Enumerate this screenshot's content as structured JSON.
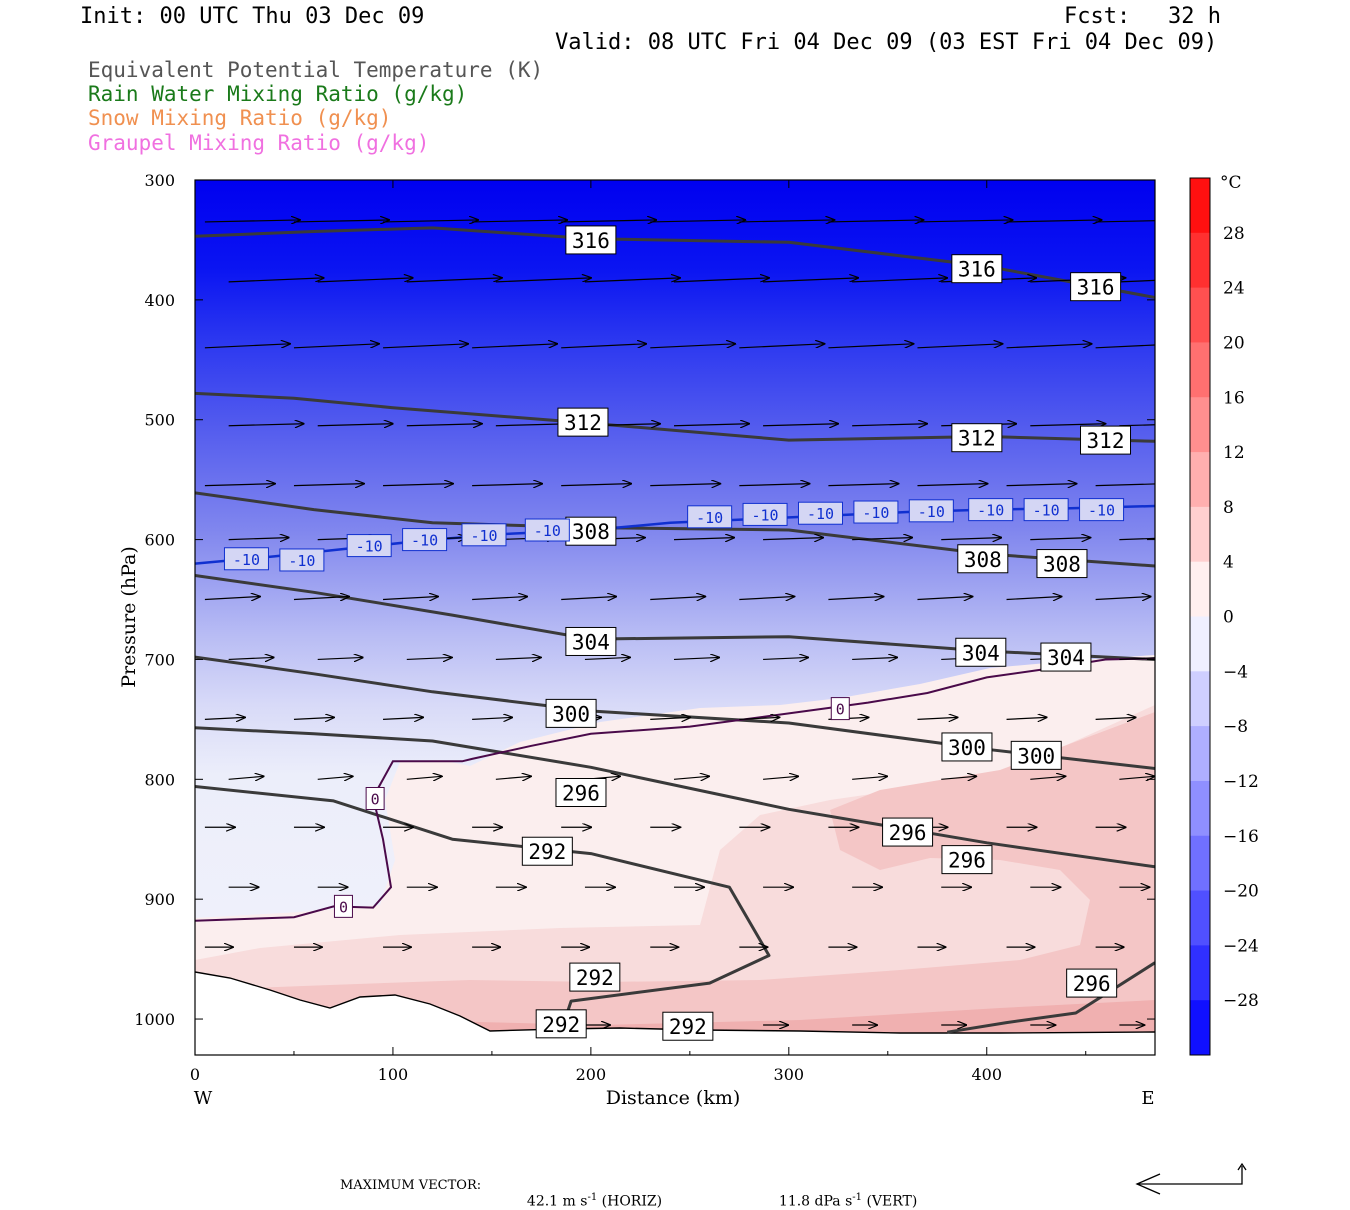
{
  "header": {
    "init": "Init: 00 UTC Thu 03 Dec 09",
    "fcst_label": "Fcst:",
    "fcst_value": "32 h",
    "valid": "Valid: 08 UTC Fri 04 Dec 09 (03 EST Fri 04 Dec 09)"
  },
  "legend": [
    {
      "label": "Equivalent Potential Temperature (K)",
      "color": "#555555"
    },
    {
      "label": "Rain Water Mixing Ratio (g/kg)",
      "color": "#1a7a1a"
    },
    {
      "label": "Snow Mixing Ratio (g/kg)",
      "color": "#f09050"
    },
    {
      "label": "Graupel Mixing Ratio (g/kg)",
      "color": "#f070e0"
    }
  ],
  "chart_data": {
    "type": "cross-section",
    "xlabel": "Distance (km)",
    "ylabel": "Pressure (hPa)",
    "xlim": [
      0,
      485
    ],
    "ylim": [
      1030,
      300
    ],
    "x_ticks": [
      0,
      100,
      200,
      300,
      400
    ],
    "y_ticks": [
      300,
      400,
      500,
      600,
      700,
      800,
      900,
      1000
    ],
    "x_end_labels": {
      "left": "W",
      "right": "E"
    },
    "colorbar": {
      "unit": "°C",
      "range": [
        -32,
        32
      ],
      "step": 4,
      "tick_labels": [
        28,
        24,
        20,
        16,
        12,
        8,
        4,
        0,
        -4,
        -8,
        -12,
        -16,
        -20,
        -24,
        -28
      ]
    },
    "theta_e_contours": [
      {
        "value": 316,
        "label_positions": [
          [
            200,
            350
          ],
          [
            395,
            374
          ],
          [
            455,
            389
          ]
        ],
        "line": [
          [
            0,
            347
          ],
          [
            60,
            343
          ],
          [
            120,
            340
          ],
          [
            200,
            349
          ],
          [
            300,
            352
          ],
          [
            400,
            372
          ],
          [
            485,
            398
          ]
        ]
      },
      {
        "value": 312,
        "label_positions": [
          [
            196,
            502
          ],
          [
            395,
            515
          ],
          [
            460,
            517
          ]
        ],
        "line": [
          [
            0,
            478
          ],
          [
            50,
            482
          ],
          [
            100,
            490
          ],
          [
            200,
            503
          ],
          [
            300,
            517
          ],
          [
            400,
            514
          ],
          [
            485,
            518
          ]
        ]
      },
      {
        "value": 308,
        "label_positions": [
          [
            200,
            593
          ],
          [
            398,
            616
          ],
          [
            438,
            620
          ]
        ],
        "line": [
          [
            0,
            561
          ],
          [
            60,
            575
          ],
          [
            120,
            586
          ],
          [
            200,
            590
          ],
          [
            300,
            592
          ],
          [
            400,
            612
          ],
          [
            485,
            622
          ]
        ]
      },
      {
        "value": 304,
        "label_positions": [
          [
            200,
            685
          ],
          [
            397,
            694
          ],
          [
            440,
            698
          ]
        ],
        "line": [
          [
            0,
            630
          ],
          [
            60,
            644
          ],
          [
            130,
            663
          ],
          [
            200,
            683
          ],
          [
            300,
            681
          ],
          [
            400,
            693
          ],
          [
            485,
            700
          ]
        ]
      },
      {
        "value": 300,
        "label_positions": [
          [
            190,
            745
          ],
          [
            390,
            773
          ],
          [
            425,
            780
          ]
        ],
        "line": [
          [
            0,
            698
          ],
          [
            60,
            712
          ],
          [
            120,
            727
          ],
          [
            200,
            743
          ],
          [
            300,
            753
          ],
          [
            400,
            775
          ],
          [
            485,
            791
          ]
        ]
      },
      {
        "value": 296,
        "label_positions": [
          [
            195,
            811
          ],
          [
            360,
            844
          ],
          [
            390,
            867
          ]
        ],
        "line": [
          [
            0,
            757
          ],
          [
            60,
            762
          ],
          [
            120,
            768
          ],
          [
            200,
            790
          ],
          [
            300,
            825
          ],
          [
            400,
            853
          ],
          [
            485,
            873
          ]
        ]
      },
      {
        "value": 292,
        "label_positions": [
          [
            178,
            860
          ],
          [
            202,
            965
          ],
          [
            185,
            1004
          ],
          [
            249,
            1006
          ]
        ],
        "line": [
          [
            0,
            806
          ],
          [
            70,
            818
          ],
          [
            130,
            850
          ],
          [
            200,
            862
          ],
          [
            270,
            890
          ],
          [
            290,
            947
          ],
          [
            260,
            970
          ],
          [
            190,
            985
          ],
          [
            185,
            1010
          ]
        ]
      },
      {
        "value": 296,
        "label_positions": [
          [
            453,
            970
          ]
        ],
        "line": [
          [
            380,
            1011
          ],
          [
            410,
            1003
          ],
          [
            445,
            995
          ],
          [
            485,
            953
          ]
        ]
      }
    ],
    "temperature_contours": [
      {
        "value": -10,
        "color": "#1030d0",
        "label_positions": [
          [
            26,
            616
          ],
          [
            54,
            617
          ],
          [
            88,
            605
          ],
          [
            116,
            600
          ],
          [
            146,
            596
          ],
          [
            178,
            592
          ],
          [
            260,
            581
          ],
          [
            288,
            579
          ],
          [
            316,
            578
          ],
          [
            344,
            577
          ],
          [
            372,
            576
          ],
          [
            402,
            575
          ],
          [
            430,
            575
          ],
          [
            458,
            575
          ]
        ]
      },
      {
        "value": 0,
        "color": "#4a0a4a",
        "label_positions": [
          [
            91,
            816
          ],
          [
            75,
            906
          ],
          [
            326,
            741
          ]
        ]
      }
    ],
    "vectors": {
      "max_horizontal": "42.1 m s-1 (HORIZ)",
      "max_vertical": "11.8 dPa s-1 (VERT)"
    }
  },
  "footer": {
    "max_vector_label": "MAXIMUM VECTOR:",
    "horiz_value": "42.1 m s",
    "horiz_exp": "-1",
    "horiz_unit": "(HORIZ)",
    "vert_value": "11.8 dPa s",
    "vert_exp": "-1",
    "vert_unit": "(VERT)"
  }
}
